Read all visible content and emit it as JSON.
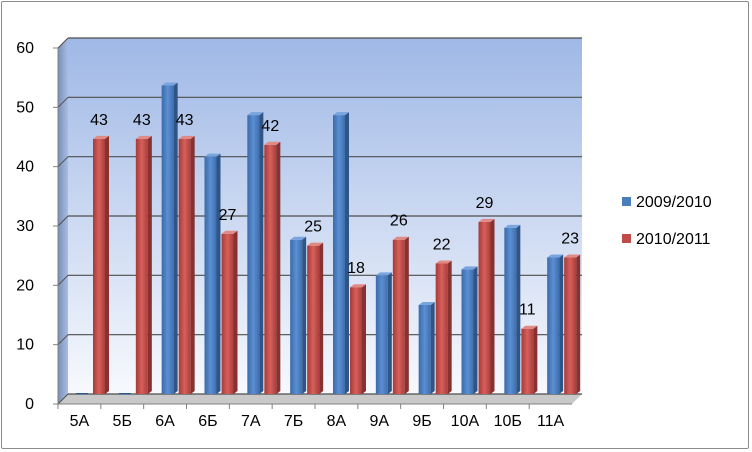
{
  "chart_data": {
    "type": "bar",
    "title": "",
    "xlabel": "",
    "ylabel": "",
    "ylim": [
      0,
      60
    ],
    "yticks": [
      "0",
      "10",
      "20",
      "30",
      "40",
      "50",
      "60"
    ],
    "grid": true,
    "legend_position": "right",
    "categories": [
      "5А",
      "5Б",
      "6А",
      "6Б",
      "7А",
      "7Б",
      "8А",
      "9А",
      "9Б",
      "10А",
      "10Б",
      "11А"
    ],
    "series": [
      {
        "name": "2009/2010",
        "color": "#4a7ebb",
        "values": [
          0,
          0,
          52,
          40,
          47,
          26,
          47,
          20,
          15,
          21,
          28,
          23
        ]
      },
      {
        "name": "2010/2011",
        "color": "#be4b48",
        "values": [
          43,
          43,
          43,
          27,
          42,
          25,
          18,
          26,
          22,
          29,
          11,
          23
        ],
        "data_labels": [
          "43",
          "43",
          "43",
          "27",
          "42",
          "25",
          "18",
          "26",
          "22",
          "29",
          "11",
          "23"
        ]
      }
    ]
  }
}
